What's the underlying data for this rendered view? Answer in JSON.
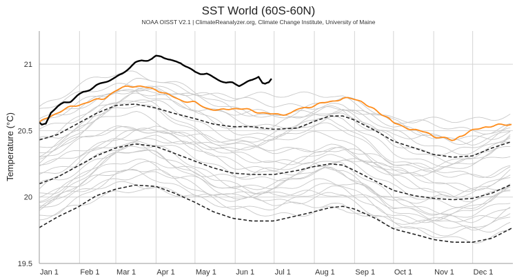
{
  "chart_data": {
    "type": "line",
    "title": "SST World (60S-60N)",
    "subtitle": "NOAA OISST V2.1 | ClimateReanalyzer.org, Climate Change Institute, University of Maine",
    "xlabel": "",
    "ylabel": "Temperature (°C)",
    "x_domain": "day of year",
    "xlim": [
      1,
      366
    ],
    "ylim": [
      19.5,
      21.25
    ],
    "yticks": [
      19.5,
      20,
      20.5,
      21
    ],
    "ytick_labels": [
      "19.5",
      "20",
      "20.5",
      "21"
    ],
    "xticks": [
      {
        "label": "Jan 1",
        "day": 1
      },
      {
        "label": "Feb 1",
        "day": 32
      },
      {
        "label": "Mar 1",
        "day": 60
      },
      {
        "label": "Apr 1",
        "day": 91
      },
      {
        "label": "May 1",
        "day": 121
      },
      {
        "label": "Jun 1",
        "day": 152
      },
      {
        "label": "Jul 1",
        "day": 182
      },
      {
        "label": "Aug 1",
        "day": 213
      },
      {
        "label": "Sep 1",
        "day": 244
      },
      {
        "label": "Oct 1",
        "day": 274
      },
      {
        "label": "Nov 1",
        "day": 305
      },
      {
        "label": "Dec 1",
        "day": 335
      }
    ],
    "grid": true,
    "colors": {
      "current_year": "#000000",
      "previous_year": "#ff8c1a",
      "mean_and_2sigma": "#222222",
      "historical_years": "#c8c8c8",
      "grid": "#d4d4d4"
    },
    "series": [
      {
        "role": "current_year",
        "x": [
          1,
          3,
          6,
          10,
          15,
          20,
          25,
          30,
          35,
          40,
          45,
          50,
          55,
          60,
          65,
          70,
          75,
          80,
          85,
          88,
          91,
          95,
          100,
          105,
          110,
          115,
          121,
          125,
          130,
          135,
          140,
          145,
          150,
          155,
          160,
          165,
          170,
          173,
          175,
          178,
          180
        ],
        "y": [
          20.56,
          20.54,
          20.55,
          20.64,
          20.68,
          20.71,
          20.72,
          20.76,
          20.79,
          20.81,
          20.84,
          20.86,
          20.88,
          20.9,
          20.93,
          20.97,
          21.01,
          21.03,
          21.03,
          21.04,
          21.06,
          21.06,
          21.04,
          21.02,
          21.01,
          20.98,
          20.94,
          20.93,
          20.93,
          20.9,
          20.88,
          20.86,
          20.86,
          20.84,
          20.86,
          20.88,
          20.91,
          20.86,
          20.85,
          20.86,
          20.89
        ]
      },
      {
        "role": "previous_year",
        "x": [
          1,
          10,
          20,
          30,
          40,
          50,
          60,
          70,
          80,
          91,
          100,
          110,
          121,
          130,
          140,
          150,
          160,
          170,
          182,
          195,
          200,
          213,
          225,
          235,
          244,
          250,
          255,
          262,
          270,
          274,
          280,
          290,
          300,
          305,
          315,
          320,
          325,
          335,
          345,
          355,
          366
        ],
        "y": [
          20.56,
          20.61,
          20.66,
          20.69,
          20.72,
          20.74,
          20.8,
          20.84,
          20.83,
          20.81,
          20.77,
          20.73,
          20.71,
          20.67,
          20.65,
          20.67,
          20.66,
          20.64,
          20.62,
          20.63,
          20.66,
          20.69,
          20.72,
          20.74,
          20.74,
          20.72,
          20.68,
          20.64,
          20.6,
          20.56,
          20.53,
          20.51,
          20.48,
          20.46,
          20.44,
          20.42,
          20.46,
          20.5,
          20.53,
          20.54,
          20.55
        ]
      },
      {
        "role": "plus_2sigma",
        "x": [
          1,
          15,
          30,
          45,
          60,
          75,
          91,
          105,
          121,
          135,
          150,
          165,
          182,
          200,
          213,
          225,
          235,
          244,
          260,
          274,
          290,
          305,
          320,
          335,
          350,
          366
        ],
        "y": [
          20.43,
          20.47,
          20.55,
          20.63,
          20.69,
          20.7,
          20.67,
          20.63,
          20.59,
          20.55,
          20.53,
          20.53,
          20.51,
          20.52,
          20.57,
          20.61,
          20.61,
          20.58,
          20.5,
          20.42,
          20.37,
          20.32,
          20.3,
          20.31,
          20.37,
          20.42
        ]
      },
      {
        "role": "mean",
        "x": [
          1,
          15,
          30,
          45,
          60,
          75,
          91,
          105,
          121,
          135,
          150,
          165,
          182,
          200,
          213,
          225,
          235,
          244,
          260,
          274,
          290,
          305,
          320,
          335,
          350,
          366
        ],
        "y": [
          20.1,
          20.15,
          20.23,
          20.31,
          20.37,
          20.4,
          20.38,
          20.33,
          20.27,
          20.22,
          20.18,
          20.17,
          20.17,
          20.2,
          20.23,
          20.25,
          20.24,
          20.2,
          20.12,
          20.05,
          20.01,
          19.99,
          19.98,
          19.99,
          20.03,
          20.1
        ]
      },
      {
        "role": "minus_2sigma",
        "x": [
          1,
          15,
          30,
          45,
          60,
          75,
          91,
          105,
          121,
          135,
          150,
          165,
          182,
          200,
          213,
          225,
          235,
          244,
          260,
          274,
          290,
          305,
          320,
          335,
          350,
          366
        ],
        "y": [
          19.77,
          19.85,
          19.92,
          20.01,
          20.06,
          20.09,
          20.08,
          20.03,
          19.96,
          19.89,
          19.84,
          19.82,
          19.82,
          19.86,
          19.89,
          19.92,
          19.93,
          19.91,
          19.84,
          19.76,
          19.72,
          19.68,
          19.66,
          19.66,
          19.69,
          19.77
        ]
      }
    ],
    "historical_years": [
      {
        "offset": 0.55,
        "amp": 0.05,
        "phase": 0.3
      },
      {
        "offset": 0.5,
        "amp": 0.06,
        "phase": 1.1
      },
      {
        "offset": 0.45,
        "amp": 0.04,
        "phase": 2.0
      },
      {
        "offset": 0.4,
        "amp": 0.05,
        "phase": 2.7
      },
      {
        "offset": 0.35,
        "amp": 0.06,
        "phase": 3.4
      },
      {
        "offset": 0.3,
        "amp": 0.04,
        "phase": 4.1
      },
      {
        "offset": 0.25,
        "amp": 0.05,
        "phase": 4.9
      },
      {
        "offset": 0.2,
        "amp": 0.06,
        "phase": 5.6
      },
      {
        "offset": 0.15,
        "amp": 0.04,
        "phase": 0.8
      },
      {
        "offset": 0.1,
        "amp": 0.05,
        "phase": 1.6
      },
      {
        "offset": 0.05,
        "amp": 0.06,
        "phase": 2.4
      },
      {
        "offset": 0.0,
        "amp": 0.04,
        "phase": 3.1
      },
      {
        "offset": -0.05,
        "amp": 0.05,
        "phase": 3.9
      },
      {
        "offset": -0.1,
        "amp": 0.06,
        "phase": 4.6
      },
      {
        "offset": -0.15,
        "amp": 0.04,
        "phase": 5.3
      },
      {
        "offset": -0.2,
        "amp": 0.05,
        "phase": 0.1
      },
      {
        "offset": -0.25,
        "amp": 0.06,
        "phase": 0.9
      },
      {
        "offset": -0.3,
        "amp": 0.04,
        "phase": 1.7
      },
      {
        "offset": 0.48,
        "amp": 0.05,
        "phase": 2.9
      },
      {
        "offset": 0.38,
        "amp": 0.04,
        "phase": 4.4
      },
      {
        "offset": 0.28,
        "amp": 0.06,
        "phase": 5.0
      },
      {
        "offset": 0.18,
        "amp": 0.05,
        "phase": 1.3
      },
      {
        "offset": 0.08,
        "amp": 0.04,
        "phase": 3.6
      },
      {
        "offset": -0.02,
        "amp": 0.06,
        "phase": 5.9
      },
      {
        "offset": -0.12,
        "amp": 0.05,
        "phase": 2.2
      },
      {
        "offset": -0.22,
        "amp": 0.04,
        "phase": 4.0
      },
      {
        "offset": 0.42,
        "amp": 0.05,
        "phase": 0.5
      },
      {
        "offset": 0.12,
        "amp": 0.05,
        "phase": 2.5
      },
      {
        "offset": -0.08,
        "amp": 0.04,
        "phase": 4.8
      },
      {
        "offset": -0.18,
        "amp": 0.06,
        "phase": 1.9
      }
    ]
  }
}
